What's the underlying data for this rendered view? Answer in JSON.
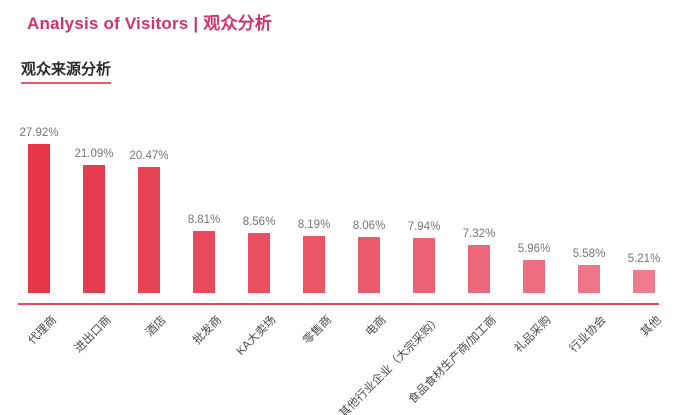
{
  "header": {
    "title": "Analysis of Visitors | 观众分析",
    "title_color": "#d0346b"
  },
  "section": {
    "subtitle": "观众来源分析",
    "underline_color": "#e85a6b"
  },
  "chart_data": {
    "type": "bar",
    "title": "观众来源分析",
    "categories": [
      "代理商",
      "进出口商",
      "酒店",
      "批发商",
      "KA大卖场",
      "零售商",
      "电商",
      "其他行业企业（大宗采购）",
      "食品食材生产商/加工商",
      "礼品采购",
      "行业协会",
      "其他"
    ],
    "values": [
      27.92,
      21.09,
      20.47,
      8.81,
      8.56,
      8.19,
      8.06,
      7.94,
      7.32,
      5.96,
      5.58,
      5.21
    ],
    "value_label_suffix": "%",
    "xlabel": "",
    "ylabel": "",
    "y_axis_visible": false,
    "grid": false,
    "legend": false,
    "y_scale": "log",
    "data_label_color": "#757575",
    "category_label_color": "#4a4a4a",
    "axis_line_color": "#e9475c",
    "bar_color_dark": "#e63648",
    "bar_color_light": "#f07a8e",
    "color_rule": "gradient dark-to-light across descending-sorted bars"
  }
}
